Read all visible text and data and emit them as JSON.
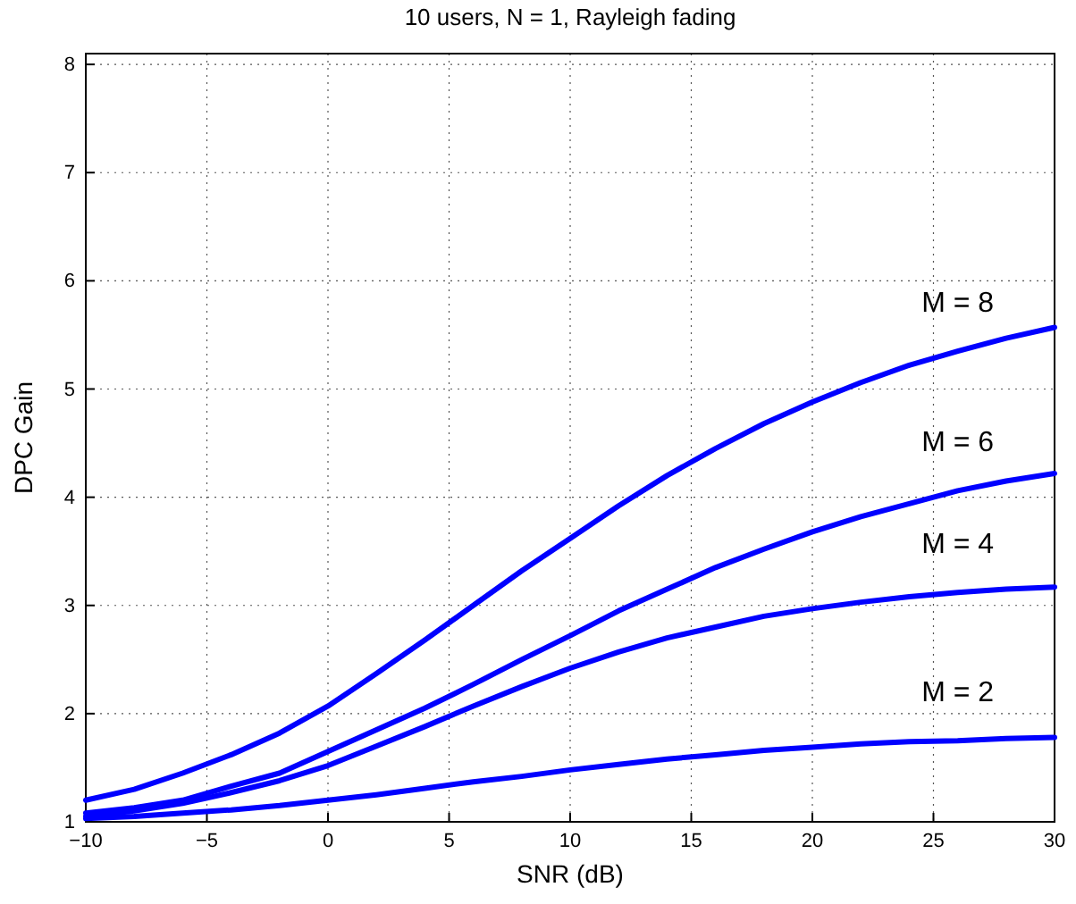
{
  "chart_data": {
    "type": "line",
    "title": "10 users, N = 1, Rayleigh fading",
    "xlabel": "SNR (dB)",
    "ylabel": "DPC Gain",
    "x": [
      -10,
      -8,
      -6,
      -4,
      -2,
      0,
      2,
      4,
      6,
      8,
      10,
      12,
      14,
      16,
      18,
      20,
      22,
      24,
      26,
      28,
      30
    ],
    "series": [
      {
        "name": "M = 8",
        "color": "#0000ff",
        "values": [
          1.2,
          1.3,
          1.45,
          1.62,
          1.82,
          2.07,
          2.37,
          2.68,
          3.0,
          3.32,
          3.62,
          3.92,
          4.2,
          4.45,
          4.68,
          4.88,
          5.06,
          5.22,
          5.35,
          5.47,
          5.57
        ]
      },
      {
        "name": "M = 6",
        "color": "#0000ff",
        "values": [
          1.08,
          1.13,
          1.2,
          1.33,
          1.45,
          1.65,
          1.85,
          2.05,
          2.27,
          2.5,
          2.72,
          2.95,
          3.15,
          3.35,
          3.52,
          3.68,
          3.82,
          3.94,
          4.06,
          4.15,
          4.22
        ]
      },
      {
        "name": "M = 4",
        "color": "#0000ff",
        "values": [
          1.05,
          1.1,
          1.17,
          1.27,
          1.38,
          1.52,
          1.7,
          1.88,
          2.07,
          2.25,
          2.42,
          2.57,
          2.7,
          2.8,
          2.9,
          2.97,
          3.03,
          3.08,
          3.12,
          3.15,
          3.17
        ]
      },
      {
        "name": "M = 2",
        "color": "#0000ff",
        "values": [
          1.03,
          1.05,
          1.08,
          1.11,
          1.15,
          1.2,
          1.25,
          1.31,
          1.37,
          1.42,
          1.48,
          1.53,
          1.58,
          1.62,
          1.66,
          1.69,
          1.72,
          1.74,
          1.75,
          1.77,
          1.78
        ]
      }
    ],
    "xlim": [
      -10,
      30
    ],
    "xticks": [
      {
        "value": -10,
        "label": "−10"
      },
      {
        "value": -5,
        "label": "−5"
      },
      0,
      5,
      10,
      15,
      20,
      25,
      30
    ],
    "ylim": [
      1,
      8.1
    ],
    "yticks": [
      1,
      2,
      3,
      4,
      5,
      6,
      7,
      8
    ],
    "grid": true,
    "line_style": "solid",
    "marker": "none"
  }
}
